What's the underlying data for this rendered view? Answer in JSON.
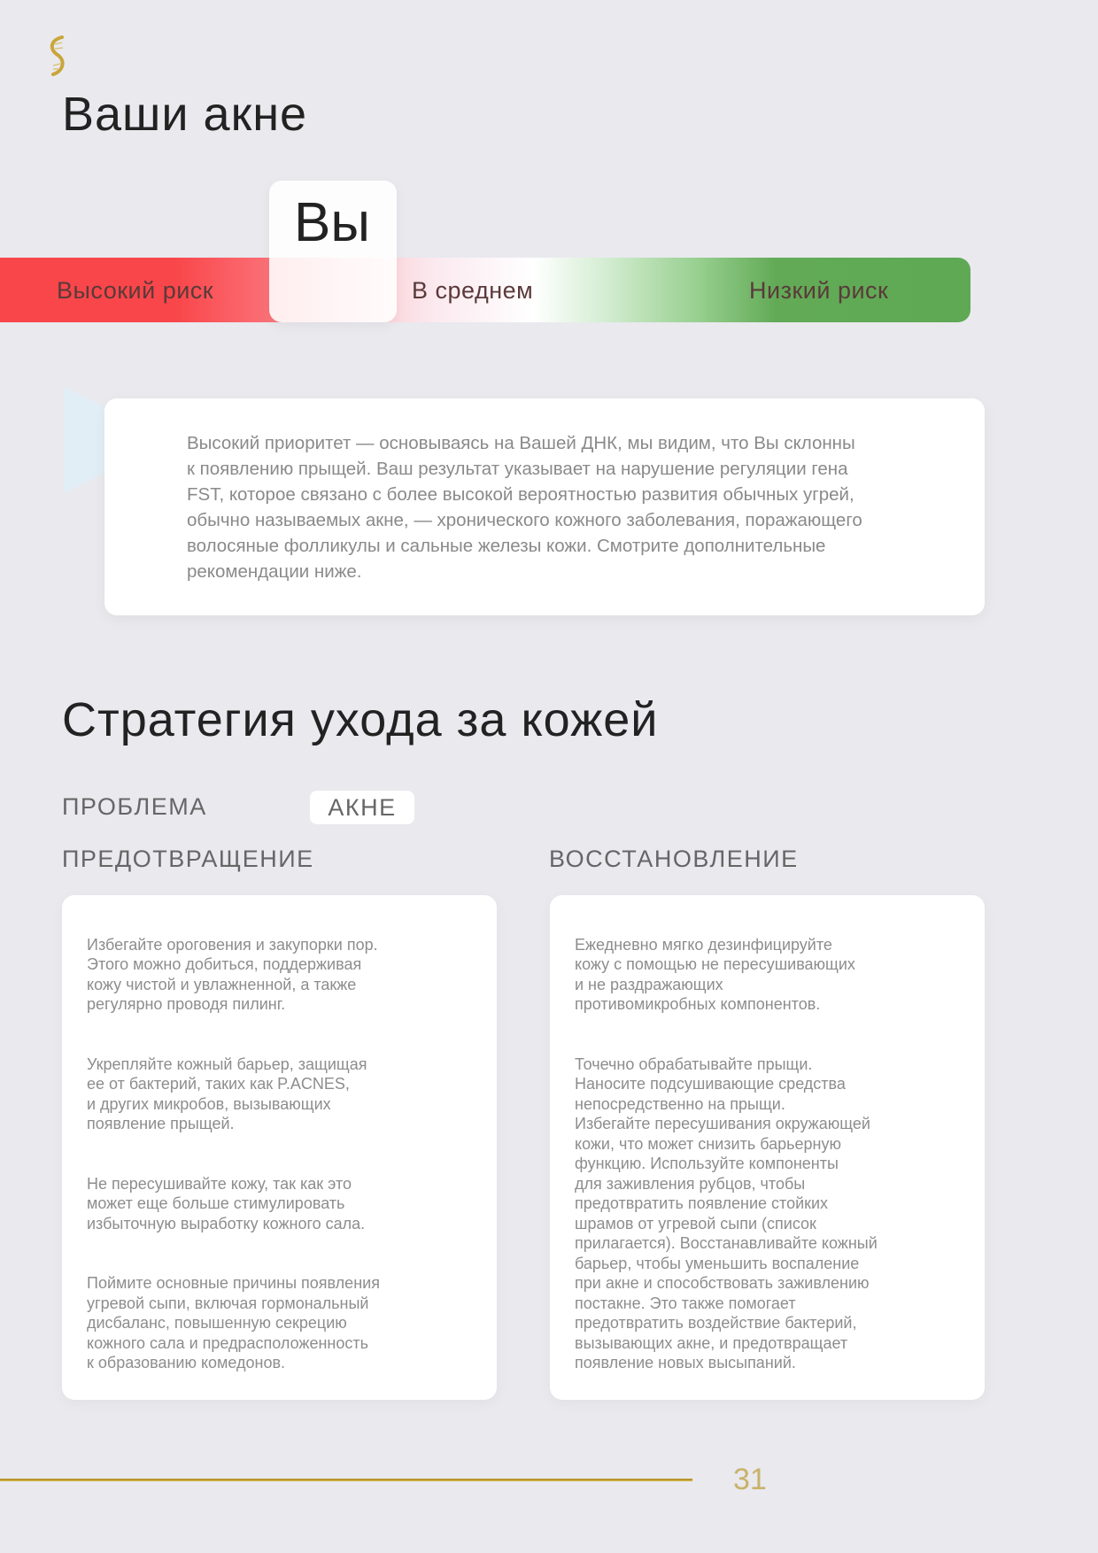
{
  "header": {
    "logo_icon": "dna-helix-gold-icon",
    "title": "Ваши акне"
  },
  "risk_scale": {
    "marker_label": "Вы",
    "marker_position": "between high and average",
    "labels": [
      "Высокий риск",
      "В среднем",
      "Низкий риск"
    ],
    "colors": {
      "high": "#f9464a",
      "average": "#ffffff",
      "low": "#5fa954"
    }
  },
  "callout": {
    "icon": "play-triangle-icon",
    "text": "Высокий приоритет — основываясь на Вашей ДНК, мы видим, что Вы склонны\nк появлению прыщей. Ваш результат указывает на нарушение регуляции гена\nFST, которое связано с более высокой вероятностью развития обычных угрей,\nобычно называемых акне, — хронического кожного заболевания, поражающего\nволосяные фолликулы и сальные железы кожи. Смотрите дополнительные\nрекомендации ниже."
  },
  "strategy": {
    "title": "Стратегия ухода за кожей",
    "problem_label": "ПРОБЛЕМА",
    "problem_value": "АКНЕ",
    "prevention": {
      "heading": "ПРЕДОТВРАЩЕНИЕ",
      "paragraphs": [
        "Избегайте ороговения и закупорки пор.\nЭтого можно добиться, поддерживая\nкожу чистой и увлажненной, а также\nрегулярно проводя пилинг.",
        "Укрепляйте кожный барьер, защищая\nее от бактерий, таких как P.ACNES,\nи других микробов, вызывающих\nпоявление прыщей.",
        "Не пересушивайте кожу, так как это\nможет еще больше стимулировать\nизбыточную выработку кожного сала.",
        "Поймите основные причины появления\nугревой сыпи, включая гормональный\nдисбаланс, повышенную секрецию\nкожного сала и предрасположенность\nк образованию комедонов."
      ]
    },
    "recovery": {
      "heading": "ВОССТАНОВЛЕНИЕ",
      "paragraphs": [
        "Ежедневно мягко дезинфицируйте\nкожу с помощью не пересушивающих\nи не раздражающих\nпротивомикробных компонентов.",
        "Точечно обрабатывайте прыщи.\nНаносите подсушивающие средства\nнепосредственно на прыщи.\nИзбегайте пересушивания окружающей\nкожи, что может снизить барьерную\nфункцию. Используйте компоненты\nдля заживления рубцов, чтобы\nпредотвратить появление стойких\nшрамов от угревой сыпи (список\nприлагается). Восстанавливайте кожный\nбарьер, чтобы уменьшить воспаление\nпри акне и способствовать заживлению\nпостакне. Это также помогает\nпредотвратить воздействие бактерий,\nвызывающих акне, и предотвращает\nпоявление новых высыпаний."
      ]
    }
  },
  "footer": {
    "page_number": "31",
    "accent": "#c9a53a"
  }
}
